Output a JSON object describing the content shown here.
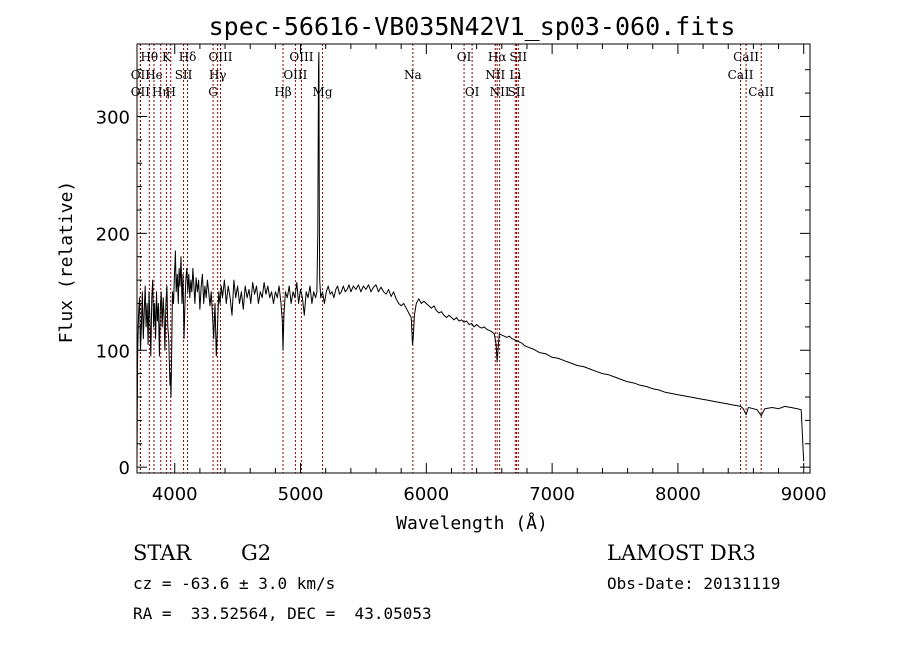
{
  "chart_data": {
    "type": "line",
    "title": "spec-56616-VB035N42V1_sp03-060.fits",
    "xlabel": "Wavelength (Å)",
    "ylabel": "Flux (relative)",
    "xlim": [
      3700,
      9050
    ],
    "ylim": [
      -5,
      362
    ],
    "xticks": [
      4000,
      5000,
      6000,
      7000,
      8000,
      9000
    ],
    "yticks": [
      0,
      100,
      200,
      300
    ],
    "series": [
      {
        "name": "flux",
        "points": [
          [
            3700,
            5
          ],
          [
            3705,
            95
          ],
          [
            3712,
            130
          ],
          [
            3720,
            145
          ],
          [
            3728,
            100
          ],
          [
            3735,
            120
          ],
          [
            3742,
            150
          ],
          [
            3750,
            110
          ],
          [
            3758,
            135
          ],
          [
            3765,
            155
          ],
          [
            3772,
            120
          ],
          [
            3780,
            140
          ],
          [
            3788,
            105
          ],
          [
            3795,
            150
          ],
          [
            3802,
            130
          ],
          [
            3810,
            95
          ],
          [
            3818,
            145
          ],
          [
            3825,
            160
          ],
          [
            3832,
            120
          ],
          [
            3840,
            140
          ],
          [
            3848,
            110
          ],
          [
            3855,
            150
          ],
          [
            3862,
            125
          ],
          [
            3870,
            140
          ],
          [
            3878,
            95
          ],
          [
            3885,
            135
          ],
          [
            3892,
            150
          ],
          [
            3900,
            120
          ],
          [
            3908,
            145
          ],
          [
            3915,
            130
          ],
          [
            3922,
            100
          ],
          [
            3930,
            140
          ],
          [
            3938,
            155
          ],
          [
            3945,
            120
          ],
          [
            3952,
            110
          ],
          [
            3958,
            85
          ],
          [
            3962,
            70
          ],
          [
            3966,
            80
          ],
          [
            3970,
            60
          ],
          [
            3975,
            95
          ],
          [
            3982,
            150
          ],
          [
            3990,
            140
          ],
          [
            3998,
            165
          ],
          [
            4005,
            185
          ],
          [
            4012,
            150
          ],
          [
            4020,
            165
          ],
          [
            4028,
            140
          ],
          [
            4035,
            170
          ],
          [
            4042,
            155
          ],
          [
            4050,
            180
          ],
          [
            4058,
            140
          ],
          [
            4066,
            165
          ],
          [
            4074,
            110
          ],
          [
            4080,
            135
          ],
          [
            4088,
            160
          ],
          [
            4096,
            170
          ],
          [
            4104,
            150
          ],
          [
            4112,
            165
          ],
          [
            4120,
            145
          ],
          [
            4128,
            160
          ],
          [
            4136,
            150
          ],
          [
            4144,
            170
          ],
          [
            4152,
            155
          ],
          [
            4160,
            140
          ],
          [
            4170,
            162
          ],
          [
            4180,
            150
          ],
          [
            4190,
            160
          ],
          [
            4200,
            135
          ],
          [
            4210,
            155
          ],
          [
            4220,
            165
          ],
          [
            4230,
            140
          ],
          [
            4240,
            155
          ],
          [
            4250,
            145
          ],
          [
            4260,
            160
          ],
          [
            4270,
            150
          ],
          [
            4280,
            138
          ],
          [
            4290,
            150
          ],
          [
            4300,
            130
          ],
          [
            4310,
            110
          ],
          [
            4320,
            140
          ],
          [
            4330,
            95
          ],
          [
            4340,
            120
          ],
          [
            4350,
            150
          ],
          [
            4360,
            140
          ],
          [
            4370,
            155
          ],
          [
            4380,
            145
          ],
          [
            4395,
            160
          ],
          [
            4410,
            140
          ],
          [
            4425,
            155
          ],
          [
            4440,
            145
          ],
          [
            4455,
            130
          ],
          [
            4470,
            160
          ],
          [
            4485,
            145
          ],
          [
            4500,
            155
          ],
          [
            4515,
            140
          ],
          [
            4530,
            150
          ],
          [
            4545,
            135
          ],
          [
            4560,
            155
          ],
          [
            4575,
            145
          ],
          [
            4590,
            152
          ],
          [
            4605,
            140
          ],
          [
            4620,
            158
          ],
          [
            4635,
            148
          ],
          [
            4650,
            155
          ],
          [
            4665,
            140
          ],
          [
            4680,
            150
          ],
          [
            4695,
            145
          ],
          [
            4710,
            158
          ],
          [
            4725,
            148
          ],
          [
            4740,
            155
          ],
          [
            4755,
            145
          ],
          [
            4770,
            150
          ],
          [
            4785,
            140
          ],
          [
            4800,
            150
          ],
          [
            4815,
            145
          ],
          [
            4830,
            155
          ],
          [
            4845,
            140
          ],
          [
            4855,
            125
          ],
          [
            4861,
            100
          ],
          [
            4868,
            130
          ],
          [
            4880,
            150
          ],
          [
            4895,
            145
          ],
          [
            4910,
            155
          ],
          [
            4925,
            140
          ],
          [
            4940,
            150
          ],
          [
            4955,
            145
          ],
          [
            4970,
            158
          ],
          [
            4985,
            140
          ],
          [
            5000,
            152
          ],
          [
            5015,
            145
          ],
          [
            5030,
            130
          ],
          [
            5045,
            150
          ],
          [
            5060,
            145
          ],
          [
            5075,
            155
          ],
          [
            5090,
            140
          ],
          [
            5105,
            150
          ],
          [
            5120,
            145
          ],
          [
            5130,
            150
          ],
          [
            5137,
            200
          ],
          [
            5140,
            260
          ],
          [
            5143,
            340
          ],
          [
            5146,
            355
          ],
          [
            5149,
            220
          ],
          [
            5152,
            160
          ],
          [
            5160,
            145
          ],
          [
            5175,
            150
          ],
          [
            5190,
            140
          ],
          [
            5205,
            150
          ],
          [
            5220,
            155
          ],
          [
            5235,
            148
          ],
          [
            5250,
            150
          ],
          [
            5265,
            145
          ],
          [
            5280,
            152
          ],
          [
            5295,
            155
          ],
          [
            5310,
            148
          ],
          [
            5325,
            150
          ],
          [
            5340,
            155
          ],
          [
            5355,
            150
          ],
          [
            5370,
            152
          ],
          [
            5385,
            156
          ],
          [
            5400,
            150
          ],
          [
            5420,
            155
          ],
          [
            5440,
            152
          ],
          [
            5460,
            156
          ],
          [
            5480,
            150
          ],
          [
            5500,
            155
          ],
          [
            5520,
            152
          ],
          [
            5540,
            156
          ],
          [
            5560,
            150
          ],
          [
            5580,
            154
          ],
          [
            5600,
            156
          ],
          [
            5620,
            150
          ],
          [
            5640,
            154
          ],
          [
            5660,
            150
          ],
          [
            5680,
            148
          ],
          [
            5700,
            152
          ],
          [
            5720,
            146
          ],
          [
            5740,
            150
          ],
          [
            5760,
            144
          ],
          [
            5780,
            140
          ],
          [
            5800,
            138
          ],
          [
            5820,
            140
          ],
          [
            5840,
            136
          ],
          [
            5860,
            132
          ],
          [
            5880,
            128
          ],
          [
            5890,
            105
          ],
          [
            5896,
            110
          ],
          [
            5905,
            130
          ],
          [
            5920,
            140
          ],
          [
            5940,
            144
          ],
          [
            5960,
            140
          ],
          [
            5980,
            142
          ],
          [
            6000,
            140
          ],
          [
            6020,
            138
          ],
          [
            6040,
            136
          ],
          [
            6060,
            138
          ],
          [
            6080,
            134
          ],
          [
            6100,
            132
          ],
          [
            6120,
            133
          ],
          [
            6140,
            130
          ],
          [
            6160,
            128
          ],
          [
            6180,
            130
          ],
          [
            6200,
            128
          ],
          [
            6220,
            126
          ],
          [
            6240,
            128
          ],
          [
            6260,
            125
          ],
          [
            6280,
            126
          ],
          [
            6300,
            124
          ],
          [
            6320,
            125
          ],
          [
            6340,
            122
          ],
          [
            6360,
            123
          ],
          [
            6380,
            120
          ],
          [
            6400,
            122
          ],
          [
            6420,
            120
          ],
          [
            6440,
            119
          ],
          [
            6460,
            120
          ],
          [
            6480,
            118
          ],
          [
            6500,
            117
          ],
          [
            6520,
            116
          ],
          [
            6540,
            114
          ],
          [
            6555,
            105
          ],
          [
            6563,
            90
          ],
          [
            6570,
            100
          ],
          [
            6580,
            114
          ],
          [
            6600,
            113
          ],
          [
            6620,
            112
          ],
          [
            6640,
            111
          ],
          [
            6660,
            112
          ],
          [
            6680,
            110
          ],
          [
            6700,
            109
          ],
          [
            6720,
            108
          ],
          [
            6740,
            107
          ],
          [
            6760,
            106
          ],
          [
            6780,
            104
          ],
          [
            6800,
            103
          ],
          [
            6850,
            101
          ],
          [
            6900,
            98
          ],
          [
            6950,
            97
          ],
          [
            7000,
            94
          ],
          [
            7050,
            93
          ],
          [
            7100,
            91
          ],
          [
            7150,
            89
          ],
          [
            7200,
            87
          ],
          [
            7250,
            86
          ],
          [
            7300,
            84
          ],
          [
            7350,
            82
          ],
          [
            7400,
            80
          ],
          [
            7450,
            79
          ],
          [
            7500,
            77
          ],
          [
            7550,
            75
          ],
          [
            7600,
            73
          ],
          [
            7650,
            72
          ],
          [
            7700,
            70
          ],
          [
            7750,
            69
          ],
          [
            7800,
            67
          ],
          [
            7850,
            66
          ],
          [
            7900,
            64
          ],
          [
            7950,
            63
          ],
          [
            8000,
            62
          ],
          [
            8050,
            61
          ],
          [
            8100,
            60
          ],
          [
            8150,
            59
          ],
          [
            8200,
            58
          ],
          [
            8250,
            57
          ],
          [
            8300,
            56
          ],
          [
            8350,
            55
          ],
          [
            8400,
            54
          ],
          [
            8450,
            53
          ],
          [
            8500,
            52
          ],
          [
            8520,
            50
          ],
          [
            8542,
            45
          ],
          [
            8560,
            51
          ],
          [
            8600,
            50
          ],
          [
            8630,
            49
          ],
          [
            8662,
            44
          ],
          [
            8690,
            50
          ],
          [
            8750,
            51
          ],
          [
            8800,
            50
          ],
          [
            8850,
            52
          ],
          [
            8900,
            51
          ],
          [
            8950,
            50
          ],
          [
            8980,
            49
          ],
          [
            9000,
            5
          ]
        ]
      }
    ],
    "lines": [
      {
        "label": "Hθ",
        "x": 3798,
        "row": 1
      },
      {
        "label": "OII",
        "x": 3727,
        "row": 2
      },
      {
        "label": "OII",
        "x": 3727,
        "row": 3
      },
      {
        "label": "He",
        "x": 3835,
        "row": 2
      },
      {
        "label": "Hη",
        "x": 3889,
        "row": 3
      },
      {
        "label": "K",
        "x": 3934,
        "row": 1
      },
      {
        "label": "H",
        "x": 3968,
        "row": 3
      },
      {
        "label": "SII",
        "x": 4070,
        "row": 2
      },
      {
        "label": "Hδ",
        "x": 4102,
        "row": 1
      },
      {
        "label": "OIII",
        "x": 4364,
        "row": 1
      },
      {
        "label": "Hγ",
        "x": 4341,
        "row": 2
      },
      {
        "label": "G",
        "x": 4305,
        "row": 3
      },
      {
        "label": "Hβ",
        "x": 4861,
        "row": 3
      },
      {
        "label": "OIII",
        "x": 5007,
        "row": 1
      },
      {
        "label": "OIII",
        "x": 4959,
        "row": 2
      },
      {
        "label": "Mg",
        "x": 5175,
        "row": 3
      },
      {
        "label": "Na",
        "x": 5893,
        "row": 2
      },
      {
        "label": "OI",
        "x": 6300,
        "row": 1
      },
      {
        "label": "OI",
        "x": 6364,
        "row": 3
      },
      {
        "label": "Hα",
        "x": 6563,
        "row": 1
      },
      {
        "label": "NII",
        "x": 6548,
        "row": 2
      },
      {
        "label": "NII",
        "x": 6583,
        "row": 3
      },
      {
        "label": "SII",
        "x": 6731,
        "row": 1
      },
      {
        "label": "Li",
        "x": 6707,
        "row": 2
      },
      {
        "label": "SII",
        "x": 6717,
        "row": 3
      },
      {
        "label": "CaII",
        "x": 8542,
        "row": 1
      },
      {
        "label": "CaII",
        "x": 8498,
        "row": 2
      },
      {
        "label": "CaII",
        "x": 8662,
        "row": 3
      }
    ],
    "line_color": "#8b0000"
  },
  "info": {
    "object_class": "STAR",
    "subclass": "G2",
    "survey": "LAMOST DR3",
    "redshift": "cz = -63.6 ± 3.0 km/s",
    "obs_date": "Obs-Date: 20131119",
    "coords": "RA =  33.52564, DEC =  43.05053"
  }
}
